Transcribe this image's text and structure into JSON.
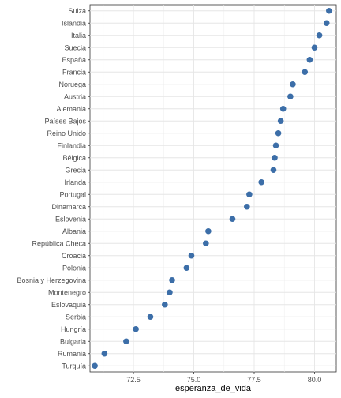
{
  "chart_data": {
    "type": "scatter",
    "xlabel": "esperanza_de_vida",
    "ylabel": "",
    "xlim": [
      70.7,
      80.9
    ],
    "xticks": [
      72.5,
      75.0,
      77.5,
      80.0
    ],
    "xtick_labels": [
      "72.5",
      "75.0",
      "77.5",
      "80.0"
    ],
    "grid": true,
    "point_color": "#3c6ea8",
    "categories": [
      "Suiza",
      "Islandia",
      "Italia",
      "Suecia",
      "España",
      "Francia",
      "Noruega",
      "Austria",
      "Alemania",
      "Países Bajos",
      "Reino Unido",
      "Finlandia",
      "Bélgica",
      "Grecia",
      "Irlanda",
      "Portugal",
      "Dinamarca",
      "Eslovenia",
      "Albania",
      "República Checa",
      "Croacia",
      "Polonia",
      "Bosnia y Herzegovina",
      "Montenegro",
      "Eslovaquia",
      "Serbia",
      "Hungría",
      "Bulgaria",
      "Rumania",
      "Turquía"
    ],
    "values": [
      80.6,
      80.5,
      80.2,
      80.0,
      79.8,
      79.6,
      79.1,
      79.0,
      78.7,
      78.6,
      78.5,
      78.4,
      78.35,
      78.3,
      77.8,
      77.3,
      77.2,
      76.6,
      75.6,
      75.5,
      74.9,
      74.7,
      74.1,
      74.0,
      73.8,
      73.2,
      72.6,
      72.2,
      71.3,
      70.9
    ]
  }
}
